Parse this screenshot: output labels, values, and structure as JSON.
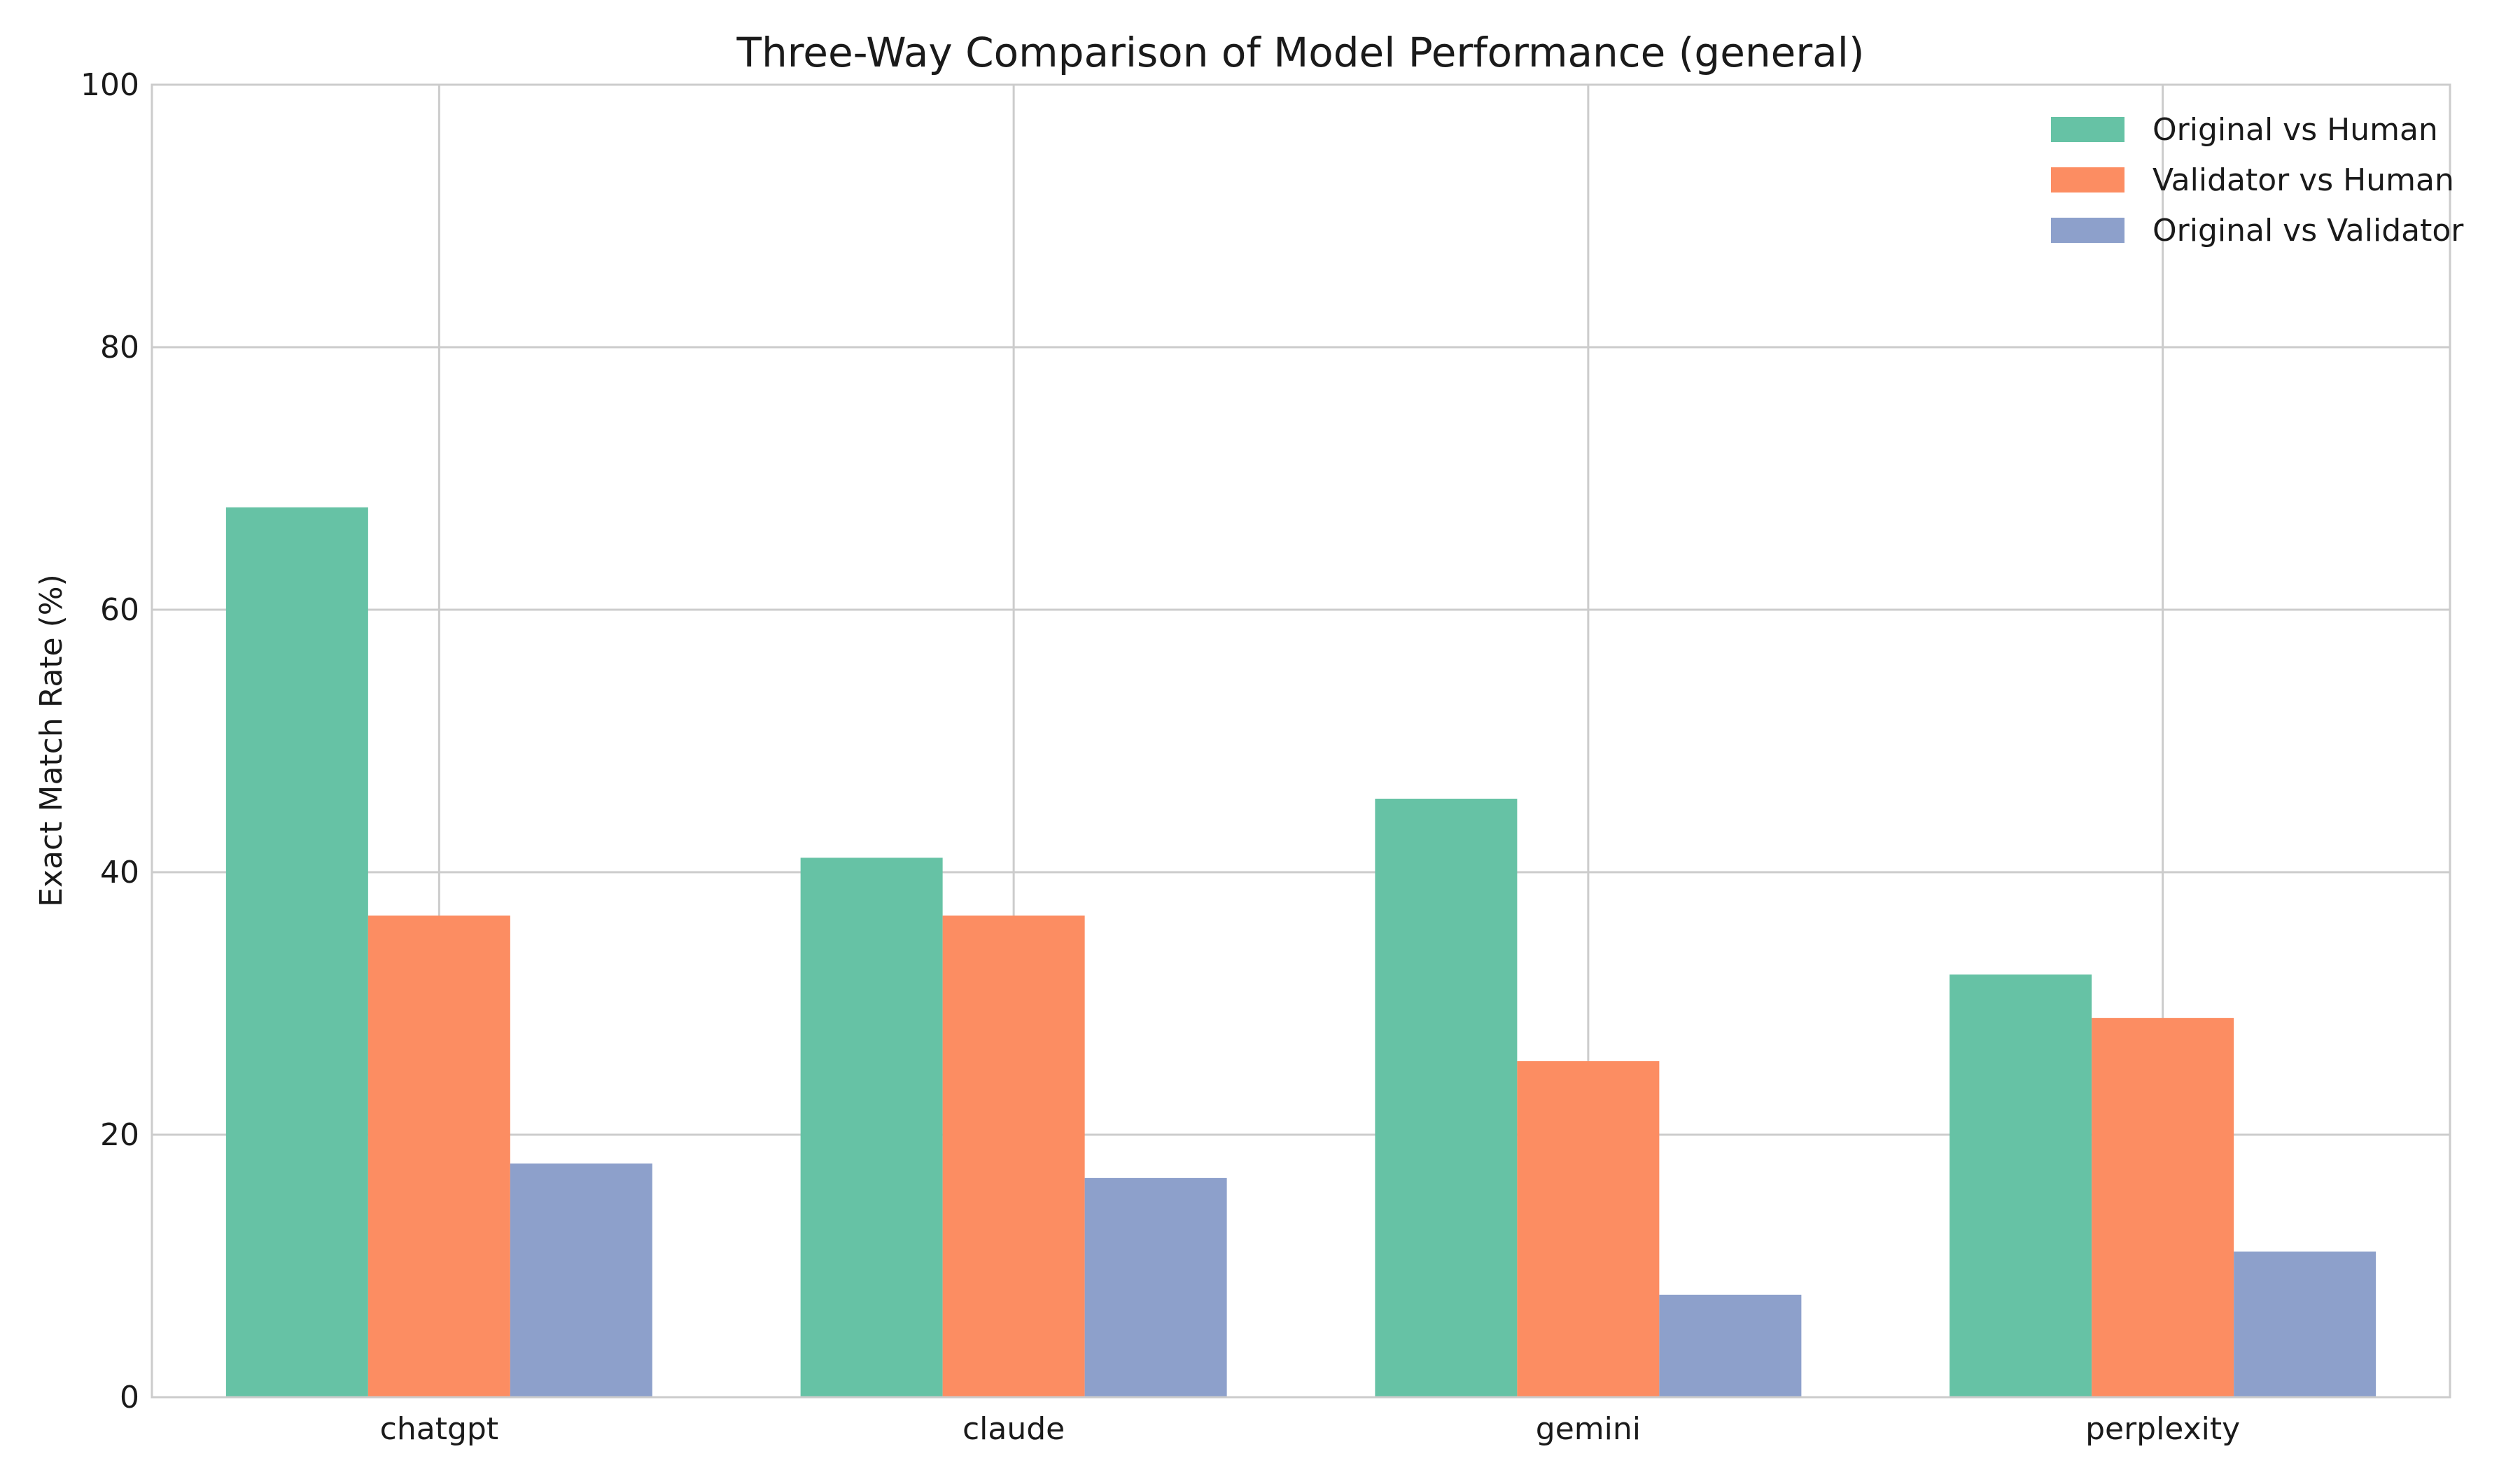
{
  "chart_data": {
    "type": "bar",
    "title": "Three-Way Comparison of Model Performance (general)",
    "xlabel": "",
    "ylabel": "Exact Match Rate (%)",
    "ylim": [
      0,
      100
    ],
    "yticks": [
      "0",
      "20",
      "40",
      "60",
      "80",
      "100"
    ],
    "categories": [
      "chatgpt",
      "claude",
      "gemini",
      "perplexity"
    ],
    "series": [
      {
        "name": "Original vs Human",
        "color": "#66c2a5",
        "values": [
          67.8,
          41.1,
          45.6,
          32.2
        ]
      },
      {
        "name": "Validator vs Human",
        "color": "#fc8d62",
        "values": [
          36.7,
          36.7,
          25.6,
          28.9
        ]
      },
      {
        "name": "Original vs Validator",
        "color": "#8da0cb",
        "values": [
          17.8,
          16.7,
          7.8,
          11.1
        ]
      }
    ],
    "grid": true,
    "legend_position": "top-right"
  }
}
